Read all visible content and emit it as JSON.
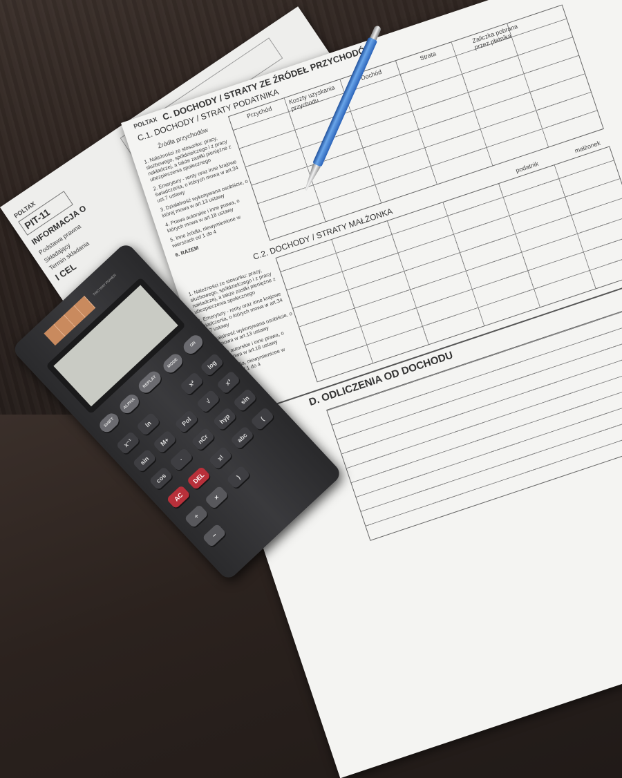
{
  "back_form": {
    "brand": "POLTAX",
    "code": "PIT-11",
    "title": "INFORMACJA O",
    "labels": [
      "Podstawa prawna",
      "Składający",
      "Termin składania",
      "I CEL"
    ]
  },
  "main_form": {
    "brand": "POLTAX",
    "section_c": "C. DOCHODY / STRATY ZE ŹRÓDEŁ PRZYCHODÓW",
    "section_c1": "C.1. DOCHODY / STRATY PODATNIKA",
    "section_c2": "C.2. DOCHODY / STRATY MAŁŻONKA",
    "section_d": "D. ODLICZENIA OD DOCHODU",
    "columns": [
      "Źródła przychodów",
      "Przychód",
      "Koszty uzyskania przychodu",
      "Dochód",
      "Strata",
      "Zaliczka pobrana przez płatnika"
    ],
    "rows": [
      "1. Należności ze stosunku: pracy, służbowego, spółdzielczego i z pracy nakładczej, a także zasiłki pieniężne z ubezpieczenia społecznego",
      "2. Emerytury - renty oraz inne krajowe świadczenia, o których mowa w art.34 ust.7 ustawy",
      "3. Działalność wykonywana osobiście, o której mowa w art.13 ustawy",
      "4. Prawa autorskie i inne prawa, o których mowa w art.18 ustawy",
      "5. Inne źródła, niewymienione w wierszach od 1 do 4",
      "6. RAZEM"
    ],
    "razem": "RAZEM",
    "podatnik": "podatnik",
    "malzonek": "małżonek"
  },
  "calculator": {
    "brand": "TWO WAY POWER",
    "keys": [
      "SHIFT",
      "ALPHA",
      "REPLAY",
      "MODE",
      "ON",
      "x⁻¹",
      "ln",
      "x²",
      "log",
      "sin",
      "M+",
      "Pol",
      "√",
      "x³",
      "cos",
      "·",
      "AC",
      "nCr",
      "hyp",
      "sin",
      "DEL",
      "÷",
      "x!",
      "abc",
      "(",
      ")",
      "×",
      "−"
    ],
    "colors": {
      "body": "#2f2f31",
      "ac": "#b8303a",
      "solar": "#c98a5e"
    }
  }
}
